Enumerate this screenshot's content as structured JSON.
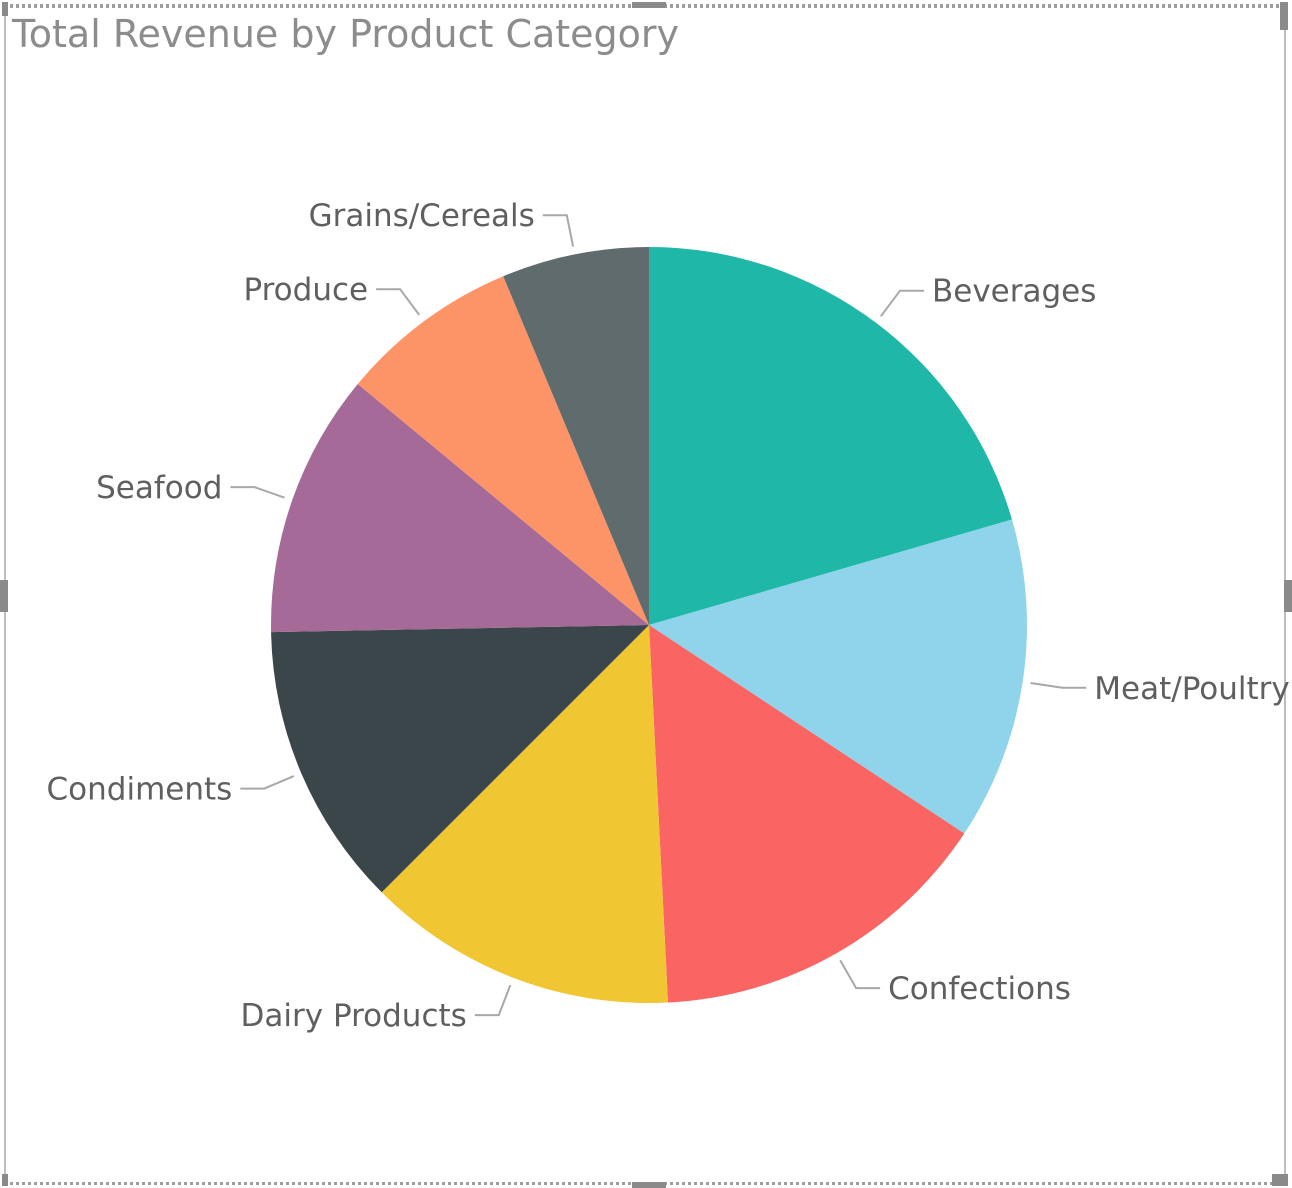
{
  "chart_data": {
    "type": "pie",
    "title": "Total Revenue by Product Category",
    "slices": [
      {
        "label": "Beverages",
        "value": 20.5,
        "color": "#1FB8A8"
      },
      {
        "label": "Meat/Poultry",
        "value": 13.8,
        "color": "#8FD4EA"
      },
      {
        "label": "Confections",
        "value": 14.9,
        "color": "#FA6462"
      },
      {
        "label": "Dairy Products",
        "value": 13.3,
        "color": "#F1C633"
      },
      {
        "label": "Condiments",
        "value": 12.2,
        "color": "#3B464A"
      },
      {
        "label": "Seafood",
        "value": 11.3,
        "color": "#A56A98"
      },
      {
        "label": "Produce",
        "value": 7.7,
        "color": "#FC9468"
      },
      {
        "label": "Grains/Cereals",
        "value": 6.3,
        "color": "#5F6B6D"
      }
    ],
    "start_angle_deg": 0,
    "direction": "clockwise",
    "legend": "none",
    "data_labels": "category-outside"
  }
}
